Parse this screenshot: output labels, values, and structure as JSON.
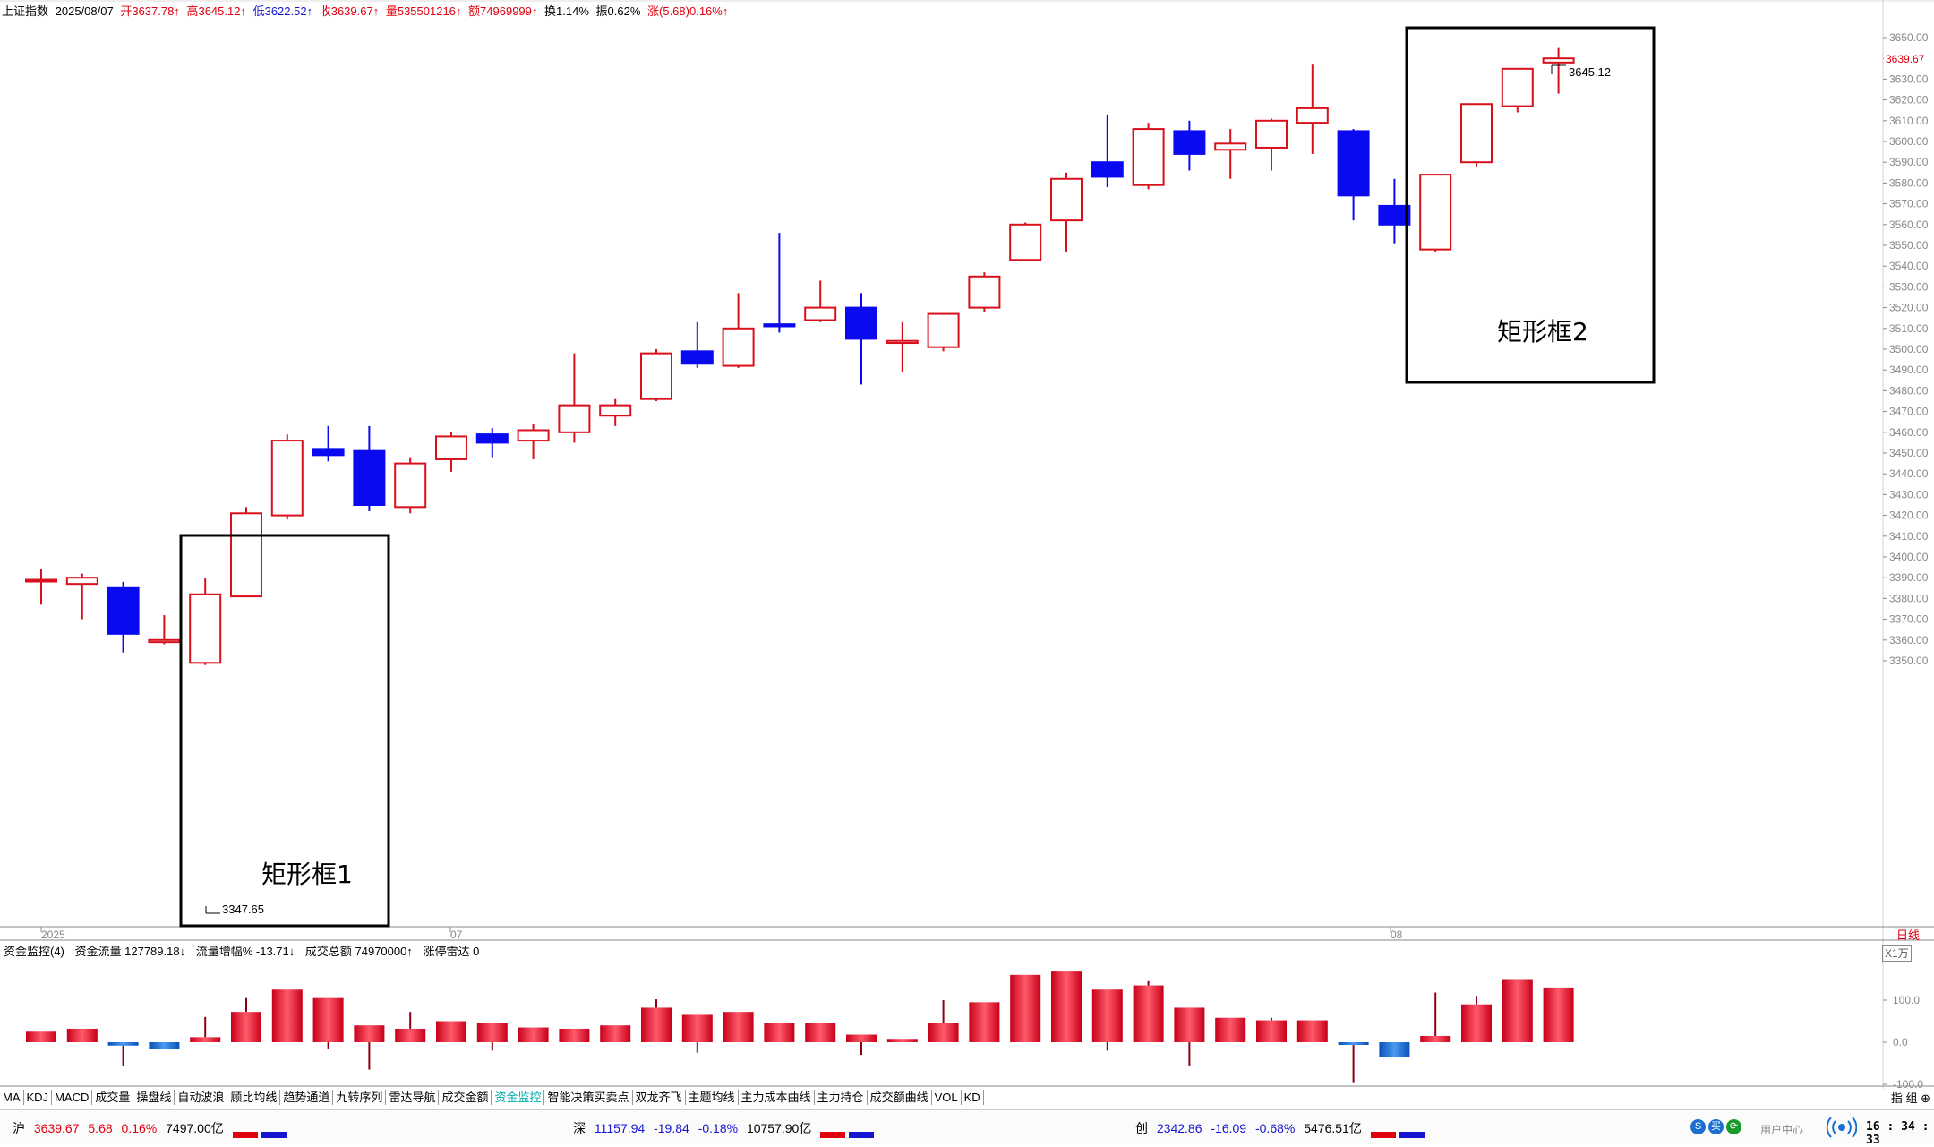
{
  "header": {
    "title": "上证指数",
    "date": "2025/08/07",
    "open": "开3637.78↑",
    "high": "高3645.12↑",
    "low": "低3622.52↑",
    "close": "收3639.67↑",
    "volume": "量535501216↑",
    "amount": "额74969999↑",
    "turnover": "换1.14%",
    "amplitude": "振0.62%",
    "change": "涨(5.68)0.16%↑"
  },
  "annotations": {
    "box1_label": "矩形框1",
    "box2_label": "矩形框2",
    "low_label": "3347.65",
    "high_label": "3645.12"
  },
  "price_axis": {
    "ticks": [
      "3650.00",
      "3640.00",
      "3630.00",
      "3620.00",
      "3610.00",
      "3600.00",
      "3590.00",
      "3580.00",
      "3570.00",
      "3560.00",
      "3550.00",
      "3540.00",
      "3530.00",
      "3520.00",
      "3510.00",
      "3500.00",
      "3490.00",
      "3480.00",
      "3470.00",
      "3460.00",
      "3450.00",
      "3440.00",
      "3430.00",
      "3420.00",
      "3410.00",
      "3400.00",
      "3390.00",
      "3380.00",
      "3370.00",
      "3360.00",
      "3350.00"
    ],
    "current": "3639.67"
  },
  "date_axis": {
    "year": "2025",
    "m07": "07",
    "m08": "08"
  },
  "period": "日线",
  "volume_panel": {
    "title": "资金监控(4)",
    "flow": "资金流量 127789.18↓",
    "flow_pct": "流量增幅% -13.71↓",
    "total": "成交总额 74970000↑",
    "limit": "涨停雷达 0",
    "scale": "X1万",
    "ticks": [
      "100.0",
      "0.0",
      "-100.0"
    ]
  },
  "tabs": [
    "MA",
    "KDJ",
    "MACD",
    "成交量",
    "操盘线",
    "自动波浪",
    "顾比均线",
    "趋势通道",
    "九转序列",
    "雷达导航",
    "成交金额",
    "资金监控",
    "智能决策买卖点",
    "双龙齐飞",
    "主题均线",
    "主力成本曲线",
    "主力持仓",
    "成交额曲线",
    "VOL",
    "KD"
  ],
  "active_tab": "资金监控",
  "tab_right": "指 组 ⊕",
  "status": {
    "sh": {
      "name": "沪",
      "value": "3639.67",
      "change": "5.68",
      "pct": "0.16%",
      "amount": "7497.00亿"
    },
    "sz": {
      "name": "深",
      "value": "11157.94",
      "change": "-19.84",
      "pct": "-0.18%",
      "amount": "10757.90亿"
    },
    "cy": {
      "name": "创",
      "value": "2342.86",
      "change": "-16.09",
      "pct": "-0.68%",
      "amount": "5476.51亿"
    },
    "user_center": "用户中心",
    "time": "16 : 34 : 33"
  },
  "colors": {
    "up": "#d8101c",
    "down": "#0a0af0",
    "vol_up": "#ef2a3c",
    "vol_down": "#1c6fd8"
  },
  "chart_data": {
    "type": "candlestick",
    "ylim": [
      3345,
      3655
    ],
    "candles": [
      {
        "o": 3389,
        "h": 3394,
        "l": 3377,
        "c": 3389
      },
      {
        "o": 3387,
        "h": 3392,
        "l": 3370,
        "c": 3390
      },
      {
        "o": 3385,
        "h": 3388,
        "l": 3354,
        "c": 3363
      },
      {
        "o": 3359,
        "h": 3372,
        "l": 3358,
        "c": 3360
      },
      {
        "o": 3349,
        "h": 3390,
        "l": 3348,
        "c": 3382
      },
      {
        "o": 3381,
        "h": 3424,
        "l": 3381,
        "c": 3421
      },
      {
        "o": 3420,
        "h": 3459,
        "l": 3418,
        "c": 3456
      },
      {
        "o": 3452,
        "h": 3463,
        "l": 3446,
        "c": 3449
      },
      {
        "o": 3451,
        "h": 3463,
        "l": 3422,
        "c": 3425
      },
      {
        "o": 3424,
        "h": 3448,
        "l": 3421,
        "c": 3445
      },
      {
        "o": 3447,
        "h": 3460,
        "l": 3441,
        "c": 3458
      },
      {
        "o": 3459,
        "h": 3462,
        "l": 3448,
        "c": 3455
      },
      {
        "o": 3456,
        "h": 3464,
        "l": 3447,
        "c": 3461
      },
      {
        "o": 3460,
        "h": 3498,
        "l": 3455,
        "c": 3473
      },
      {
        "o": 3468,
        "h": 3476,
        "l": 3463,
        "c": 3473
      },
      {
        "o": 3476,
        "h": 3500,
        "l": 3475,
        "c": 3498
      },
      {
        "o": 3499,
        "h": 3513,
        "l": 3491,
        "c": 3493
      },
      {
        "o": 3492,
        "h": 3527,
        "l": 3491,
        "c": 3510
      },
      {
        "o": 3512,
        "h": 3556,
        "l": 3508,
        "c": 3511
      },
      {
        "o": 3514,
        "h": 3533,
        "l": 3513,
        "c": 3520
      },
      {
        "o": 3520,
        "h": 3527,
        "l": 3483,
        "c": 3505
      },
      {
        "o": 3503,
        "h": 3513,
        "l": 3489,
        "c": 3504
      },
      {
        "o": 3501,
        "h": 3517,
        "l": 3499,
        "c": 3517
      },
      {
        "o": 3520,
        "h": 3537,
        "l": 3518,
        "c": 3535
      },
      {
        "o": 3543,
        "h": 3561,
        "l": 3543,
        "c": 3560
      },
      {
        "o": 3562,
        "h": 3585,
        "l": 3547,
        "c": 3582
      },
      {
        "o": 3590,
        "h": 3613,
        "l": 3578,
        "c": 3583
      },
      {
        "o": 3579,
        "h": 3609,
        "l": 3577,
        "c": 3606
      },
      {
        "o": 3605,
        "h": 3610,
        "l": 3586,
        "c": 3594
      },
      {
        "o": 3596,
        "h": 3606,
        "l": 3582,
        "c": 3599
      },
      {
        "o": 3597,
        "h": 3611,
        "l": 3586,
        "c": 3610
      },
      {
        "o": 3609,
        "h": 3637,
        "l": 3594,
        "c": 3616
      },
      {
        "o": 3605,
        "h": 3606,
        "l": 3562,
        "c": 3574
      },
      {
        "o": 3569,
        "h": 3582,
        "l": 3551,
        "c": 3560
      },
      {
        "o": 3548,
        "h": 3584,
        "l": 3547,
        "c": 3584
      },
      {
        "o": 3590,
        "h": 3618,
        "l": 3588,
        "c": 3618
      },
      {
        "o": 3617,
        "h": 3635,
        "l": 3614,
        "c": 3635
      },
      {
        "o": 3638,
        "h": 3645,
        "l": 3623,
        "c": 3640
      }
    ],
    "money_flow": {
      "ylim": [
        -100,
        130
      ],
      "values": [
        {
          "v": 25,
          "h": 25,
          "l": 25
        },
        {
          "v": 32,
          "h": 32,
          "l": 32
        },
        {
          "v": -8,
          "h": 0,
          "l": -57
        },
        {
          "v": -15,
          "h": 0,
          "l": -15
        },
        {
          "v": 12,
          "h": 60,
          "l": 12
        },
        {
          "v": 72,
          "h": 105,
          "l": 72
        },
        {
          "v": 125,
          "h": 125,
          "l": 125
        },
        {
          "v": 105,
          "h": 105,
          "l": -15
        },
        {
          "v": 40,
          "h": 40,
          "l": -65
        },
        {
          "v": 32,
          "h": 72,
          "l": 32
        },
        {
          "v": 50,
          "h": 50,
          "l": 50
        },
        {
          "v": 45,
          "h": 45,
          "l": -20
        },
        {
          "v": 35,
          "h": 35,
          "l": 35
        },
        {
          "v": 32,
          "h": 32,
          "l": 32
        },
        {
          "v": 40,
          "h": 40,
          "l": 40
        },
        {
          "v": 82,
          "h": 102,
          "l": 82
        },
        {
          "v": 65,
          "h": 65,
          "l": -25
        },
        {
          "v": 72,
          "h": 72,
          "l": 72
        },
        {
          "v": 45,
          "h": 45,
          "l": 45
        },
        {
          "v": 45,
          "h": 45,
          "l": 45
        },
        {
          "v": 18,
          "h": 18,
          "l": -30
        },
        {
          "v": 8,
          "h": 8,
          "l": 8
        },
        {
          "v": 45,
          "h": 100,
          "l": 45
        },
        {
          "v": 95,
          "h": 95,
          "l": 95
        },
        {
          "v": 160,
          "h": 160,
          "l": 160
        },
        {
          "v": 170,
          "h": 170,
          "l": 170
        },
        {
          "v": 125,
          "h": 125,
          "l": -20
        },
        {
          "v": 135,
          "h": 145,
          "l": 135
        },
        {
          "v": 82,
          "h": 82,
          "l": -55
        },
        {
          "v": 58,
          "h": 58,
          "l": 58
        },
        {
          "v": 52,
          "h": 58,
          "l": 52
        },
        {
          "v": 52,
          "h": 52,
          "l": 52
        },
        {
          "v": -2,
          "h": 0,
          "l": -95
        },
        {
          "v": -35,
          "h": 0,
          "l": -35
        },
        {
          "v": 15,
          "h": 118,
          "l": 15
        },
        {
          "v": 90,
          "h": 110,
          "l": 90
        },
        {
          "v": 150,
          "h": 150,
          "l": 150
        },
        {
          "v": 130,
          "h": 130,
          "l": 130
        }
      ]
    }
  }
}
